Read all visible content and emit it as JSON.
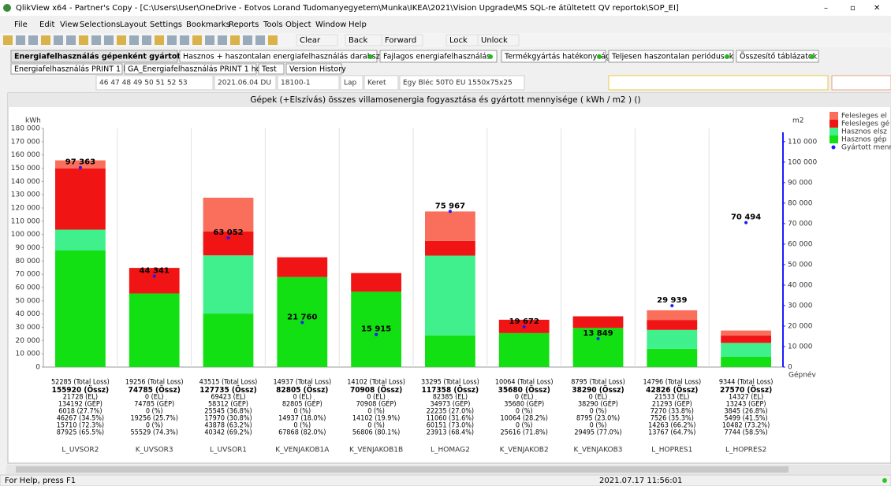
{
  "window": {
    "title": "QlikView x64 - Partner's Copy - [C:\\Users\\User\\OneDrive - Eotvos Lorand Tudomanyegyetem\\Munka\\IKEA\\2021\\Vision Upgrade\\MS SQL-re átültetett QV reportok\\SOP_EI]",
    "menu": [
      "File",
      "Edit",
      "View",
      "Selections",
      "Layout",
      "Settings",
      "Bookmarks",
      "Reports",
      "Tools",
      "Object",
      "Window",
      "Help"
    ],
    "toolbar": [
      "Clear",
      "Back",
      "Forward",
      "Lock",
      "Unlock"
    ]
  },
  "tabs": [
    "Energiafelhasználás gépenként gyártott db-al",
    "Hasznos + haszontalan energiafelhasználás darabszámokkal",
    "Fajlagos energiafelhasználás",
    "Termékgyártás hatékonysága",
    "Teljesen haszontalan periódusok",
    "Összesítő táblázatok"
  ],
  "subtabs": [
    "Energiafelhasználás PRINT 1 hó",
    "GA_Energiafelhasználás PRINT 1 hó",
    "Test",
    "Version History"
  ],
  "filters": [
    "46 47 48 49 50 51 52 53",
    "2021.06.04 DU",
    "18100-1",
    "Lap",
    "Keret",
    "Egy Bléc 50T0 EU 1550x75x25"
  ],
  "chart_data": {
    "type": "bar",
    "stacked": true,
    "title": "Gépek (+Elszívás) összes villamosenergia fogyasztása és gyártott mennyisége ( kWh / m2 ) ()",
    "ylabel": "kWh",
    "y2label": "m2",
    "xlabel": "Gépnév",
    "categories": [
      "L_UVSOR2",
      "K_UVSOR3",
      "L_UVSOR1",
      "K_VENJAKOB1A",
      "K_VENJAKOB1B",
      "L_HOMAG2",
      "K_VENJAKOB2",
      "K_VENJAKOB3",
      "L_HOPRES1",
      "L_HOPRES2"
    ],
    "series": [
      {
        "name": "Felesleges el",
        "color": "#fa6f5c",
        "values": [
          6018,
          0,
          25545,
          0,
          0,
          22235,
          0,
          0,
          7270,
          3845
        ]
      },
      {
        "name": "Felesleges gé",
        "color": "#f01414",
        "values": [
          46267,
          19256,
          17970,
          14937,
          14102,
          11060,
          10064,
          8795,
          7526,
          5499
        ]
      },
      {
        "name": "Hasznos elsz",
        "color": "#3ff08c",
        "values": [
          15710,
          0,
          43878,
          0,
          0,
          60151,
          0,
          0,
          14263,
          10482
        ]
      },
      {
        "name": "Hasznos gép",
        "color": "#12e012",
        "values": [
          87925,
          55529,
          40342,
          67868,
          56806,
          23913,
          25616,
          29495,
          13767,
          7744
        ]
      },
      {
        "name": "Gyártott menn",
        "color": "#1a1aff",
        "type": "scatter",
        "axis": "y2",
        "values": [
          97363,
          44341,
          63052,
          21760,
          15915,
          75967,
          19672,
          13849,
          29939,
          70494
        ],
        "value_labels": [
          "97 363",
          "44 341",
          "63 052",
          "21 760",
          "15 915",
          "75 967",
          "19 672",
          "13 849",
          "29 939",
          "70 494"
        ]
      }
    ],
    "details": [
      [
        "52285 (Total Loss)",
        "155920 (Össz)",
        "21728 (EL)",
        "134192 (GÉP)",
        "6018 (27.7%)",
        "46267 (34.5%)",
        "15710 (72.3%)",
        "87925 (65.5%)"
      ],
      [
        "19256 (Total Loss)",
        "74785 (Össz)",
        "0 (EL)",
        "74785 (GÉP)",
        "0 (%)",
        "19256 (25.7%)",
        "0 (%)",
        "55529 (74.3%)"
      ],
      [
        "43515 (Total Loss)",
        "127735 (Össz)",
        "69423 (EL)",
        "58312 (GÉP)",
        "25545 (36.8%)",
        "17970 (30.8%)",
        "43878 (63.2%)",
        "40342 (69.2%)"
      ],
      [
        "14937 (Total Loss)",
        "82805 (Össz)",
        "0 (EL)",
        "82805 (GÉP)",
        "0 (%)",
        "14937 (18.0%)",
        "0 (%)",
        "67868 (82.0%)"
      ],
      [
        "14102 (Total Loss)",
        "70908 (Össz)",
        "0 (EL)",
        "70908 (GÉP)",
        "0 (%)",
        "14102 (19.9%)",
        "0 (%)",
        "56806 (80.1%)"
      ],
      [
        "33295 (Total Loss)",
        "117358 (Össz)",
        "82385 (EL)",
        "34973 (GÉP)",
        "22235 (27.0%)",
        "11060 (31.6%)",
        "60151 (73.0%)",
        "23913 (68.4%)"
      ],
      [
        "10064 (Total Loss)",
        "35680 (Össz)",
        "0 (EL)",
        "35680 (GÉP)",
        "0 (%)",
        "10064 (28.2%)",
        "0 (%)",
        "25616 (71.8%)"
      ],
      [
        "8795 (Total Loss)",
        "38290 (Össz)",
        "0 (EL)",
        "38290 (GÉP)",
        "0 (%)",
        "8795 (23.0%)",
        "0 (%)",
        "29495 (77.0%)"
      ],
      [
        "14796 (Total Loss)",
        "42826 (Össz)",
        "21533 (EL)",
        "21293 (GÉP)",
        "7270 (33.8%)",
        "7526 (35.3%)",
        "14263 (66.2%)",
        "13767 (64.7%)"
      ],
      [
        "9344 (Total Loss)",
        "27570 (Össz)",
        "14327 (EL)",
        "13243 (GÉP)",
        "3845 (26.8%)",
        "5499 (41.5%)",
        "10482 (73.2%)",
        "7744 (58.5%)"
      ]
    ],
    "ylim": [
      0,
      180000
    ],
    "yticks": [
      0,
      {
        "value": 10000,
        "label": "10 000"
      },
      {
        "value": 20000,
        "label": "20 000"
      },
      {
        "value": 30000,
        "label": "30 000"
      },
      {
        "value": 40000,
        "label": "40 000"
      },
      {
        "value": 50000,
        "label": "50 000"
      },
      {
        "value": 60000,
        "label": "60 000"
      },
      {
        "value": 70000,
        "label": "70 000"
      },
      {
        "value": 80000,
        "label": "80 000"
      },
      {
        "value": 90000,
        "label": "90 000"
      },
      {
        "value": 100000,
        "label": "100 000"
      },
      {
        "value": 110000,
        "label": "110 000"
      },
      {
        "value": 120000,
        "label": "120 000"
      },
      {
        "value": 130000,
        "label": "130 000"
      },
      {
        "value": 140000,
        "label": "140 000"
      },
      {
        "value": 150000,
        "label": "150 000"
      },
      {
        "value": 160000,
        "label": "160 000"
      },
      {
        "value": 170000,
        "label": "170 000"
      },
      {
        "value": 180000,
        "label": "180 000"
      }
    ],
    "y2lim": [
      0,
      116471
    ],
    "y2ticks": [
      0,
      {
        "value": 10000,
        "label": "10 000"
      },
      {
        "value": 20000,
        "label": "20 000"
      },
      {
        "value": 30000,
        "label": "30 000"
      },
      {
        "value": 40000,
        "label": "40 000"
      },
      {
        "value": 50000,
        "label": "50 000"
      },
      {
        "value": 60000,
        "label": "60 000"
      },
      {
        "value": 70000,
        "label": "70 000"
      },
      {
        "value": 80000,
        "label": "80 000"
      },
      {
        "value": 90000,
        "label": "90 000"
      },
      {
        "value": 100000,
        "label": "100 000"
      },
      {
        "value": 110000,
        "label": "110 000"
      }
    ],
    "grid": false,
    "legend": "top-right"
  },
  "status": {
    "help": "For Help, press F1",
    "time": "2021.07.17 11:56:01"
  }
}
